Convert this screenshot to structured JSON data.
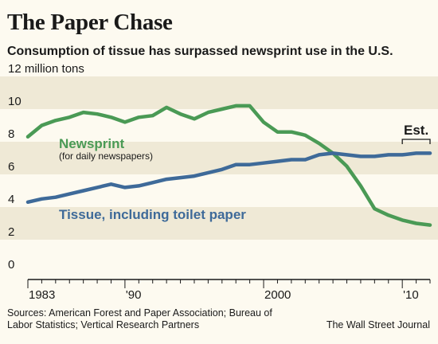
{
  "chart_data": {
    "type": "line",
    "title": "The Paper Chase",
    "subtitle": "Consumption of tissue has surpassed newsprint use in the U.S.",
    "ylabel": "million tons",
    "ylim": [
      0,
      12
    ],
    "xlim": [
      1983,
      2012
    ],
    "y_ticks": [
      {
        "value": 12,
        "label": "12 million tons"
      },
      {
        "value": 10,
        "label": "10"
      },
      {
        "value": 8,
        "label": "8"
      },
      {
        "value": 6,
        "label": "6"
      },
      {
        "value": 4,
        "label": "4"
      },
      {
        "value": 2,
        "label": "2"
      },
      {
        "value": 0,
        "label": "0"
      }
    ],
    "x_tick_labels": [
      {
        "year": 1983,
        "label": "1983"
      },
      {
        "year": 1990,
        "label": "'90"
      },
      {
        "year": 2000,
        "label": "2000"
      },
      {
        "year": 2010,
        "label": "'10"
      }
    ],
    "bands": "alternating horizontal shading every 2 million tons",
    "series": [
      {
        "name": "Newsprint",
        "note": "(for daily newspapers)",
        "color": "#4a9a55",
        "x": [
          1983,
          1984,
          1985,
          1986,
          1987,
          1988,
          1989,
          1990,
          1991,
          1992,
          1993,
          1994,
          1995,
          1996,
          1997,
          1998,
          1999,
          2000,
          2001,
          2002,
          2003,
          2004,
          2005,
          2006,
          2007,
          2008,
          2009,
          2010,
          2011,
          2012
        ],
        "y": [
          8.3,
          9.0,
          9.3,
          9.5,
          9.8,
          9.7,
          9.5,
          9.2,
          9.5,
          9.6,
          10.1,
          9.7,
          9.4,
          9.8,
          10.0,
          10.2,
          10.2,
          9.2,
          8.6,
          8.6,
          8.4,
          7.9,
          7.3,
          6.5,
          5.3,
          3.9,
          3.5,
          3.2,
          3.0,
          2.9
        ]
      },
      {
        "name": "Tissue, including toilet paper",
        "color": "#3e6a99",
        "x": [
          1983,
          1984,
          1985,
          1986,
          1987,
          1988,
          1989,
          1990,
          1991,
          1992,
          1993,
          1994,
          1995,
          1996,
          1997,
          1998,
          1999,
          2000,
          2001,
          2002,
          2003,
          2004,
          2005,
          2006,
          2007,
          2008,
          2009,
          2010,
          2011,
          2012
        ],
        "y": [
          4.3,
          4.5,
          4.6,
          4.8,
          5.0,
          5.2,
          5.4,
          5.2,
          5.3,
          5.5,
          5.7,
          5.8,
          5.9,
          6.1,
          6.3,
          6.6,
          6.6,
          6.7,
          6.8,
          6.9,
          6.9,
          7.2,
          7.3,
          7.2,
          7.1,
          7.1,
          7.2,
          7.2,
          7.3,
          7.3
        ]
      }
    ],
    "annotations": [
      {
        "text": "Est.",
        "applies_to": [
          2010,
          2012
        ]
      }
    ]
  },
  "footer": {
    "sources": "Sources: American Forest and Paper Association; Bureau of Labor Statistics; Vertical Research Partners",
    "credit": "The Wall Street Journal"
  }
}
